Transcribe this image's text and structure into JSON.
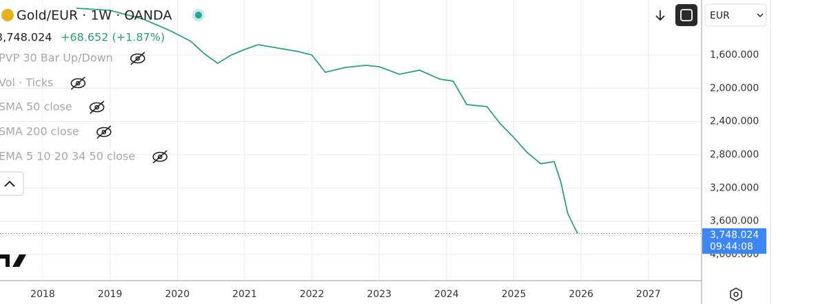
{
  "header": {
    "title": "Gold/EUR · 1W · OANDA",
    "change": "+68.652 (+1.87%)",
    "currency": "EUR"
  },
  "indicators": [
    "PVP 30 Bar Up/Down",
    "Vol · Ticks",
    "SMA 50 close",
    "SMA 200 close",
    "EMA 5 10 20 34 50 close"
  ],
  "chart_data": {
    "type": "line",
    "inverted": true,
    "grid": true,
    "color": "#2e9e80",
    "x": [
      2018.5,
      2019.0,
      2019.5,
      2019.9,
      2020.2,
      2020.4,
      2020.6,
      2020.8,
      2021.0,
      2021.2,
      2021.5,
      2021.8,
      2022.0,
      2022.2,
      2022.5,
      2022.8,
      2023.0,
      2023.3,
      2023.6,
      2023.9,
      2024.1,
      2024.3,
      2024.6,
      2024.8,
      2025.0,
      2025.2,
      2025.4,
      2025.6,
      2025.7,
      2025.8,
      2025.9,
      2025.95
    ],
    "values": [
      1037,
      1062,
      1170,
      1310,
      1435,
      1584,
      1700,
      1600,
      1534,
      1476,
      1517,
      1559,
      1600,
      1807,
      1749,
      1724,
      1741,
      1832,
      1782,
      1890,
      1915,
      2196,
      2221,
      2428,
      2593,
      2775,
      2908,
      2883,
      3131,
      3504,
      3670,
      3748.024
    ],
    "xlim": [
      2017.365,
      2027.79
    ],
    "xticks": [
      2018,
      2019,
      2020,
      2021,
      2022,
      2023,
      2024,
      2025,
      2026,
      2027
    ],
    "ylim": [
      938,
      4315
    ],
    "yticks": [
      {
        "value": 1600,
        "label": "1,600.000"
      },
      {
        "value": 2000,
        "label": "2,000.000"
      },
      {
        "value": 2400,
        "label": "2,400.000"
      },
      {
        "value": 2800,
        "label": "2,800.000"
      },
      {
        "value": 3200,
        "label": "3,200.000"
      },
      {
        "value": 3600,
        "label": "3,600.000"
      },
      {
        "value": 4000,
        "label": "4,000.000"
      }
    ],
    "last_price": {
      "value": 3748.024,
      "label": "3,748.024"
    },
    "countdown": "09:44:08"
  }
}
